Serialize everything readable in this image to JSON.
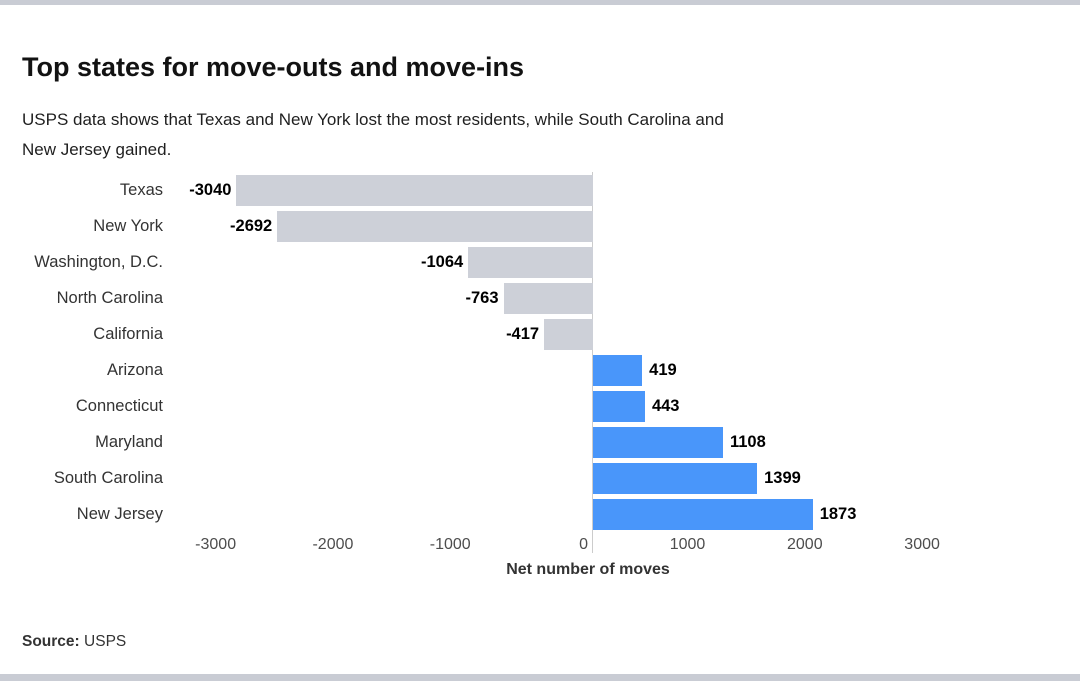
{
  "header": {
    "title": "Top states for move-outs and move-ins",
    "subtitle": "USPS data shows that Texas and New York lost the most residents, while South Carolina and\nNew Jersey gained."
  },
  "footer": {
    "source_label": "Source:",
    "source_value": "USPS"
  },
  "chart_data": {
    "type": "bar",
    "orientation": "horizontal",
    "title": "Top states for move-outs and move-ins",
    "xlabel": "Net number of moves",
    "categories": [
      "Texas",
      "New York",
      "Washington, D.C.",
      "North Carolina",
      "California",
      "Arizona",
      "Connecticut",
      "Maryland",
      "South Carolina",
      "New Jersey"
    ],
    "values": [
      -3040,
      -2692,
      -1064,
      -763,
      -417,
      419,
      443,
      1108,
      1399,
      1873
    ],
    "bar_labels": [
      "-3040",
      "-2692",
      "-1064",
      "-763",
      "-417",
      "419",
      "443",
      "1108",
      "1399",
      "1873"
    ],
    "x_tick_values": [
      -3000,
      -2000,
      -1000,
      0,
      1000,
      2000,
      3000
    ],
    "x_tick_labels": [
      "-3000",
      "-2000",
      "-1000",
      "0",
      "1000",
      "2000",
      "3000"
    ],
    "xlim": [
      -3000,
      3000
    ],
    "grid": "zero-line-only",
    "legend": null,
    "colors": {
      "positive_bar": "#4996fa",
      "negative_bar": "#cdd0d8",
      "zero_line": "#cccccc",
      "strip": "#c9ccd4"
    }
  }
}
